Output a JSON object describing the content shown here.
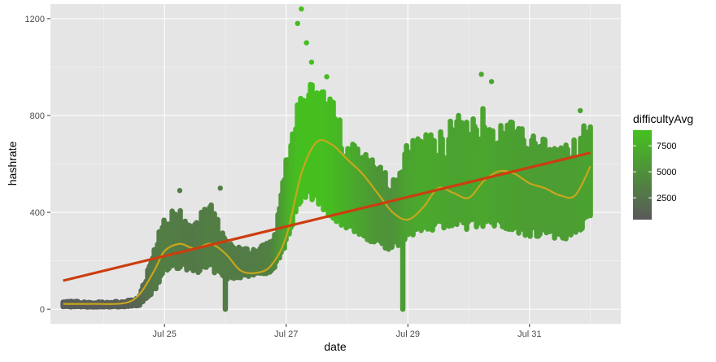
{
  "chart_data": {
    "type": "scatter",
    "xlabel": "date",
    "ylabel": "hashrate",
    "x_tick_labels": [
      "Jul 25",
      "Jul 27",
      "Jul 29",
      "Jul 31"
    ],
    "x_tick_dates": [
      "2018-07-25",
      "2018-07-27",
      "2018-07-29",
      "2018-07-31"
    ],
    "y_ticks": [
      0,
      400,
      800,
      1200
    ],
    "xlim": [
      "2018-07-23T03:00",
      "2018-08-01T12:00"
    ],
    "ylim": [
      -60,
      1260
    ],
    "grid": true,
    "legend": {
      "title": "difficultyAvg",
      "position": "right",
      "breaks": [
        2500,
        5000,
        7500
      ],
      "range": [
        400,
        9000
      ],
      "low_color": "#595959",
      "high_color": "#45c11e"
    },
    "colors": {
      "panel_bg": "#e5e5e5",
      "grid_major": "#ffffff",
      "linear_fit": "#cc3d10",
      "smooth_fit": "#c8a61c"
    },
    "scatter_band": {
      "x": [
        "2018-07-23T08:00",
        "2018-07-23T20:00",
        "2018-07-24T08:00",
        "2018-07-24T14:00",
        "2018-07-24T20:00",
        "2018-07-25T00:00",
        "2018-07-25T06:00",
        "2018-07-25T12:00",
        "2018-07-25T18:00",
        "2018-07-26T00:00",
        "2018-07-26T06:00",
        "2018-07-26T12:00",
        "2018-07-26T18:00",
        "2018-07-26T22:00",
        "2018-07-27T02:00",
        "2018-07-27T06:00",
        "2018-07-27T12:00",
        "2018-07-27T18:00",
        "2018-07-28T00:00",
        "2018-07-28T06:00",
        "2018-07-28T12:00",
        "2018-07-28T18:00",
        "2018-07-29T00:00",
        "2018-07-29T06:00",
        "2018-07-29T12:00",
        "2018-07-29T18:00",
        "2018-07-30T00:00",
        "2018-07-30T06:00",
        "2018-07-30T12:00",
        "2018-07-30T18:00",
        "2018-07-31T00:00",
        "2018-07-31T06:00",
        "2018-07-31T12:00",
        "2018-07-31T18:00",
        "2018-08-01T00:00"
      ],
      "ymin": [
        10,
        8,
        10,
        15,
        70,
        150,
        170,
        150,
        160,
        120,
        130,
        140,
        150,
        210,
        330,
        450,
        430,
        360,
        330,
        300,
        260,
        240,
        300,
        320,
        330,
        330,
        330,
        340,
        330,
        320,
        300,
        300,
        290,
        290,
        380
      ],
      "ymax": [
        35,
        30,
        32,
        50,
        250,
        400,
        410,
        370,
        440,
        300,
        250,
        250,
        280,
        470,
        800,
        940,
        920,
        870,
        700,
        650,
        600,
        530,
        690,
        720,
        720,
        800,
        800,
        830,
        780,
        770,
        720,
        700,
        680,
        700,
        800
      ],
      "difficulty": [
        700,
        600,
        700,
        1500,
        3000,
        3500,
        3200,
        3000,
        3500,
        3400,
        3200,
        3300,
        3600,
        5500,
        8000,
        8800,
        8800,
        8500,
        7500,
        6500,
        5500,
        5000,
        6500,
        7000,
        6800,
        6500,
        6500,
        6800,
        6500,
        6300,
        6000,
        6000,
        6000,
        6200,
        6500
      ]
    },
    "outlier_points": [
      {
        "x": "2018-07-27T04:30",
        "y": 1180,
        "difficulty": 8600
      },
      {
        "x": "2018-07-27T06:00",
        "y": 1240,
        "difficulty": 8800
      },
      {
        "x": "2018-07-27T08:00",
        "y": 1100,
        "difficulty": 8800
      },
      {
        "x": "2018-07-27T10:00",
        "y": 1020,
        "difficulty": 8800
      },
      {
        "x": "2018-07-27T16:00",
        "y": 960,
        "difficulty": 8500
      },
      {
        "x": "2018-07-30T05:00",
        "y": 970,
        "difficulty": 6900
      },
      {
        "x": "2018-07-30T09:00",
        "y": 940,
        "difficulty": 6800
      },
      {
        "x": "2018-07-31T20:00",
        "y": 820,
        "difficulty": 6300
      },
      {
        "x": "2018-07-25T22:00",
        "y": 500,
        "difficulty": 3500
      },
      {
        "x": "2018-07-25T06:00",
        "y": 490,
        "difficulty": 3200
      }
    ],
    "dropouts": [
      {
        "x": "2018-07-26T00:00",
        "y_low": 0,
        "y_high": 140,
        "difficulty": 3300
      },
      {
        "x": "2018-07-28T22:00",
        "y_low": 0,
        "y_high": 300,
        "difficulty": 6000
      }
    ],
    "linear_fit": {
      "x": [
        "2018-07-23T08:00",
        "2018-08-01T00:00"
      ],
      "y": [
        118,
        646
      ]
    },
    "smooth_fit": {
      "x": [
        "2018-07-23T08:00",
        "2018-07-23T20:00",
        "2018-07-24T08:00",
        "2018-07-24T14:00",
        "2018-07-24T20:00",
        "2018-07-25T00:00",
        "2018-07-25T06:00",
        "2018-07-25T12:00",
        "2018-07-25T18:00",
        "2018-07-26T00:00",
        "2018-07-26T06:00",
        "2018-07-26T12:00",
        "2018-07-26T18:00",
        "2018-07-27T00:00",
        "2018-07-27T06:00",
        "2018-07-27T12:00",
        "2018-07-27T18:00",
        "2018-07-28T00:00",
        "2018-07-28T06:00",
        "2018-07-28T12:00",
        "2018-07-28T18:00",
        "2018-07-29T00:00",
        "2018-07-29T06:00",
        "2018-07-29T12:00",
        "2018-07-29T18:00",
        "2018-07-30T00:00",
        "2018-07-30T06:00",
        "2018-07-30T12:00",
        "2018-07-30T18:00",
        "2018-07-31T00:00",
        "2018-07-31T06:00",
        "2018-07-31T12:00",
        "2018-07-31T18:00",
        "2018-08-01T00:00"
      ],
      "y": [
        22,
        22,
        25,
        60,
        160,
        240,
        270,
        250,
        270,
        230,
        160,
        150,
        180,
        300,
        560,
        690,
        680,
        620,
        560,
        480,
        400,
        370,
        420,
        500,
        480,
        460,
        530,
        570,
        560,
        520,
        500,
        470,
        470,
        590
      ]
    }
  }
}
